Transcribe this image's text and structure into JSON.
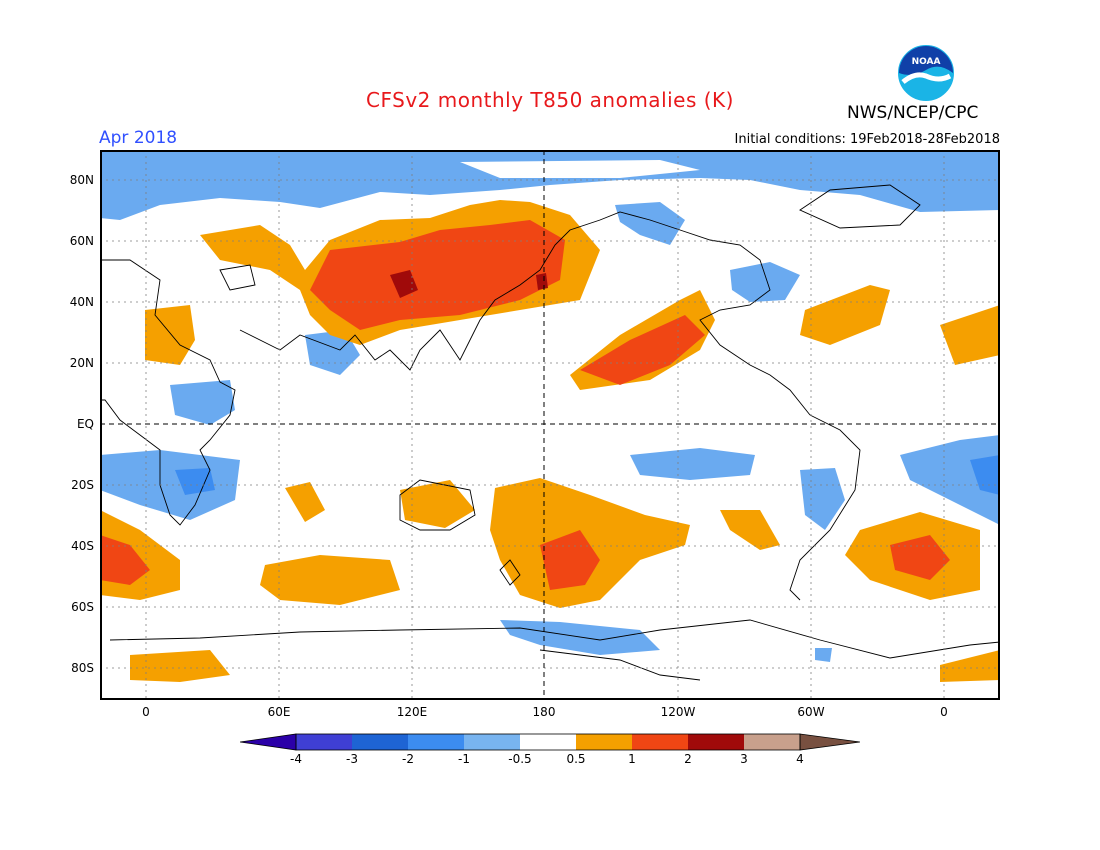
{
  "header": {
    "title": "CFSv2 monthly T850 anomalies (K)",
    "period": "Apr 2018",
    "initial_conditions": "Initial conditions: 19Feb2018-28Feb2018",
    "agency": "NWS/NCEP/CPC",
    "logo_text": "NOAA"
  },
  "axes": {
    "lat_labels": [
      "80N",
      "60N",
      "40N",
      "20N",
      "EQ",
      "20S",
      "40S",
      "60S",
      "80S"
    ],
    "lon_labels": [
      "0",
      "60E",
      "120E",
      "180",
      "120W",
      "60W",
      "0"
    ]
  },
  "colorbar": {
    "labels": [
      "-4",
      "-3",
      "-2",
      "-1",
      "-0.5",
      "0.5",
      "1",
      "2",
      "3",
      "4"
    ],
    "colors": [
      "#2b00a8",
      "#3f3fd4",
      "#1e64d4",
      "#3c8cf0",
      "#78b4f0",
      "#ffffff",
      "#f5a000",
      "#f04614",
      "#a00a0a",
      "#c8a08c",
      "#785040"
    ]
  },
  "colors": {
    "cold_weak": "#6aaaf0",
    "cold_mid": "#3c8cf0",
    "warm_weak": "#f5a000",
    "warm_mid": "#f04614",
    "warm_strong": "#a00a0a"
  }
}
